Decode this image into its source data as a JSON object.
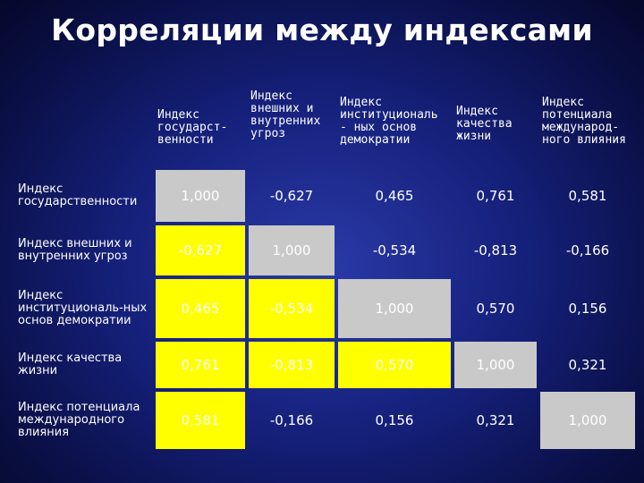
{
  "title": "Корреляции между индексами",
  "columns": [
    "Индекс государст-венности",
    "Индекс внешних и внутренних угроз",
    "Индекс институциональ - ных основ демократии",
    "Индекс качества жизни",
    "Индекс потенциала международ-ного влияния"
  ],
  "rows": [
    {
      "label": "Индекс государственности",
      "values": [
        "1,000",
        "-0,627",
        "0,465",
        "0,761",
        "0,581"
      ]
    },
    {
      "label": "Индекс внешних и внутренних угроз",
      "values": [
        "-0,627",
        "1,000",
        "-0,534",
        "-0,813",
        "-0,166"
      ]
    },
    {
      "label": "Индекс институциональ-ных основ демократии",
      "values": [
        "0,465",
        "-0,534",
        "1,000",
        "0,570",
        "0,156"
      ]
    },
    {
      "label": "Индекс качества жизни",
      "values": [
        "0,761",
        "-0,813",
        "0,570",
        "1,000",
        "0,321"
      ]
    },
    {
      "label": "Индекс потенциала международного влияния",
      "values": [
        "0,581",
        "-0,166",
        "0,156",
        "0,321",
        "1,000"
      ]
    }
  ],
  "colors": {
    "diagonal": "#c9c9c9",
    "highlight": "#ffff00",
    "background": "#15207a"
  }
}
